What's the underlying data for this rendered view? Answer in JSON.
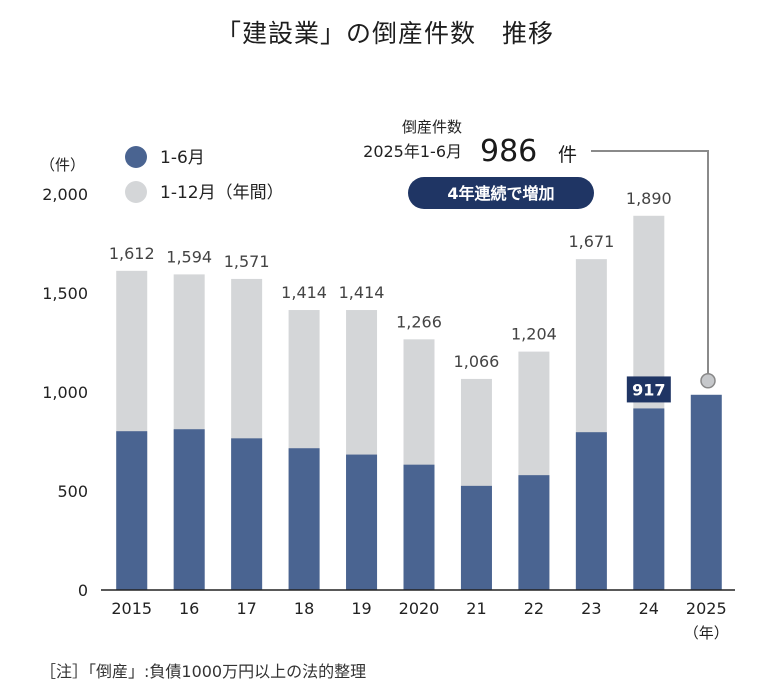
{
  "title": "「建設業」の倒産件数　推移",
  "note": "［注］「倒産」:負債1000万円以上の法的整理",
  "legend": {
    "unit": "（件）",
    "h1_label": "1-6月",
    "full_label": "1-12月（年間）"
  },
  "callout": {
    "label_line1": "倒産件数",
    "label_line2": "2025年1-6月",
    "value": "986",
    "unit": "件",
    "badge": "4年連続で増加"
  },
  "colors": {
    "h1": "#4a6491",
    "full": "#d4d6d8",
    "badge": "#1f3564",
    "connector": "#8a8a8a"
  },
  "chart_data": {
    "type": "bar",
    "title": "「建設業」の倒産件数　推移",
    "ylabel": "（件）",
    "xlabel": "（年）",
    "ylim": [
      0,
      2000
    ],
    "yticks": [
      "0",
      "500",
      "1,000",
      "1,500",
      "2,000"
    ],
    "ytick_values": [
      0,
      500,
      1000,
      1500,
      2000
    ],
    "categories": [
      "2015",
      "16",
      "17",
      "18",
      "19",
      "2020",
      "21",
      "22",
      "23",
      "24",
      "2025"
    ],
    "series": [
      {
        "name": "1-12月（年間）",
        "values": [
          1612,
          1594,
          1571,
          1414,
          1414,
          1266,
          1066,
          1204,
          1671,
          1890,
          null
        ],
        "labels": [
          "1,612",
          "1,594",
          "1,571",
          "1,414",
          "1,414",
          "1,266",
          "1,066",
          "1,204",
          "1,671",
          "1,890",
          ""
        ]
      },
      {
        "name": "1-6月",
        "values": [
          802,
          812,
          766,
          716,
          684,
          633,
          526,
          580,
          797,
          917,
          986
        ],
        "labels": [
          "",
          "",
          "",
          "",
          "",
          "",
          "",
          "",
          "",
          "917",
          ""
        ]
      }
    ]
  }
}
